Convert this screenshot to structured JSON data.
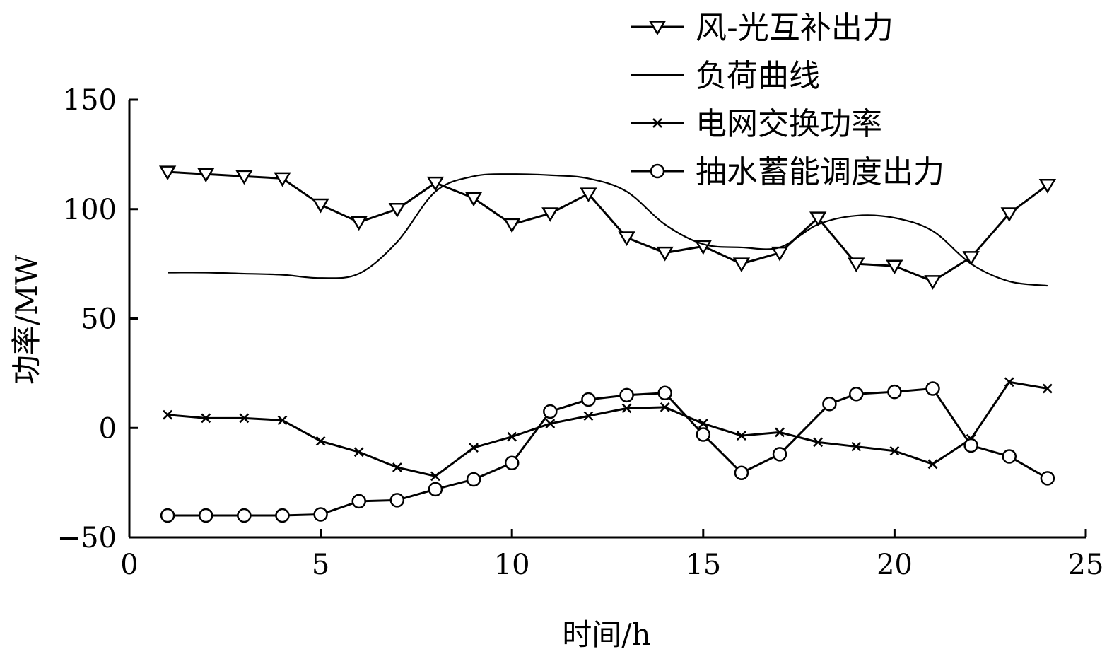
{
  "chart_data": {
    "type": "line",
    "title": "",
    "xlabel": "时间/h",
    "ylabel": "功率/MW",
    "xlim": [
      0,
      25
    ],
    "ylim": [
      -50,
      150
    ],
    "xticks": [
      0,
      5,
      10,
      15,
      20,
      25
    ],
    "yticks": [
      -50,
      0,
      50,
      100,
      150
    ],
    "xtick_labels": [
      "0",
      "5",
      "10",
      "15",
      "20",
      "25"
    ],
    "ytick_labels": [
      "−50",
      "0",
      "50",
      "100",
      "150"
    ],
    "grid": false,
    "legend_position": "top-right",
    "series": [
      {
        "name": "风-光互补出力",
        "marker": "triangle-down",
        "color": "#000000",
        "x": [
          1,
          2,
          3,
          4,
          5,
          6,
          7,
          8,
          9,
          10,
          11,
          12,
          13,
          14,
          15,
          16,
          17,
          18,
          19,
          20,
          21,
          22,
          23,
          24
        ],
        "y": [
          117,
          116,
          115,
          114,
          102,
          94,
          100,
          112,
          105,
          93,
          98,
          107,
          87,
          80,
          83,
          75,
          80,
          96,
          75,
          74,
          67,
          78,
          98,
          111
        ]
      },
      {
        "name": "负荷曲线",
        "marker": "none",
        "color": "#000000",
        "x": [
          1,
          2,
          3,
          4,
          5,
          6,
          7,
          8,
          9,
          10,
          11,
          12,
          13,
          14,
          15,
          16,
          17,
          18,
          19,
          20,
          21,
          22,
          23,
          24
        ],
        "y": [
          71,
          71,
          70.5,
          70,
          68.5,
          70.5,
          85,
          108,
          115,
          116,
          115.5,
          114,
          108,
          93,
          84,
          82.5,
          82.5,
          93,
          97,
          96,
          90,
          75,
          67,
          65
        ]
      },
      {
        "name": "电网交换功率",
        "marker": "x",
        "color": "#000000",
        "x": [
          1,
          2,
          3,
          4,
          5,
          6,
          7,
          8,
          9,
          10,
          11,
          12,
          13,
          14,
          15,
          16,
          17,
          18,
          19,
          20,
          21,
          22,
          23,
          24
        ],
        "y": [
          6,
          4.5,
          4.5,
          3.5,
          -6,
          -11,
          -18,
          -22,
          -9,
          -4,
          2,
          5.5,
          9,
          9.5,
          2,
          -3.5,
          -2,
          -6.5,
          -8.5,
          -10.5,
          -16.5,
          -5,
          21,
          18
        ]
      },
      {
        "name": "抽水蓄能调度出力",
        "marker": "circle",
        "color": "#000000",
        "x": [
          1,
          2,
          3,
          4,
          5,
          6,
          7,
          8,
          9,
          10,
          11,
          12,
          13,
          14,
          15,
          16,
          17,
          18.3,
          19,
          20,
          21,
          22,
          23,
          24
        ],
        "y": [
          -40,
          -40,
          -40,
          -40,
          -39.5,
          -33.5,
          -33,
          -28,
          -23.5,
          -16,
          7.5,
          13,
          15,
          16,
          -3,
          -20.5,
          -12,
          11,
          15.5,
          16.5,
          18,
          -8,
          -13,
          -23
        ]
      }
    ]
  }
}
